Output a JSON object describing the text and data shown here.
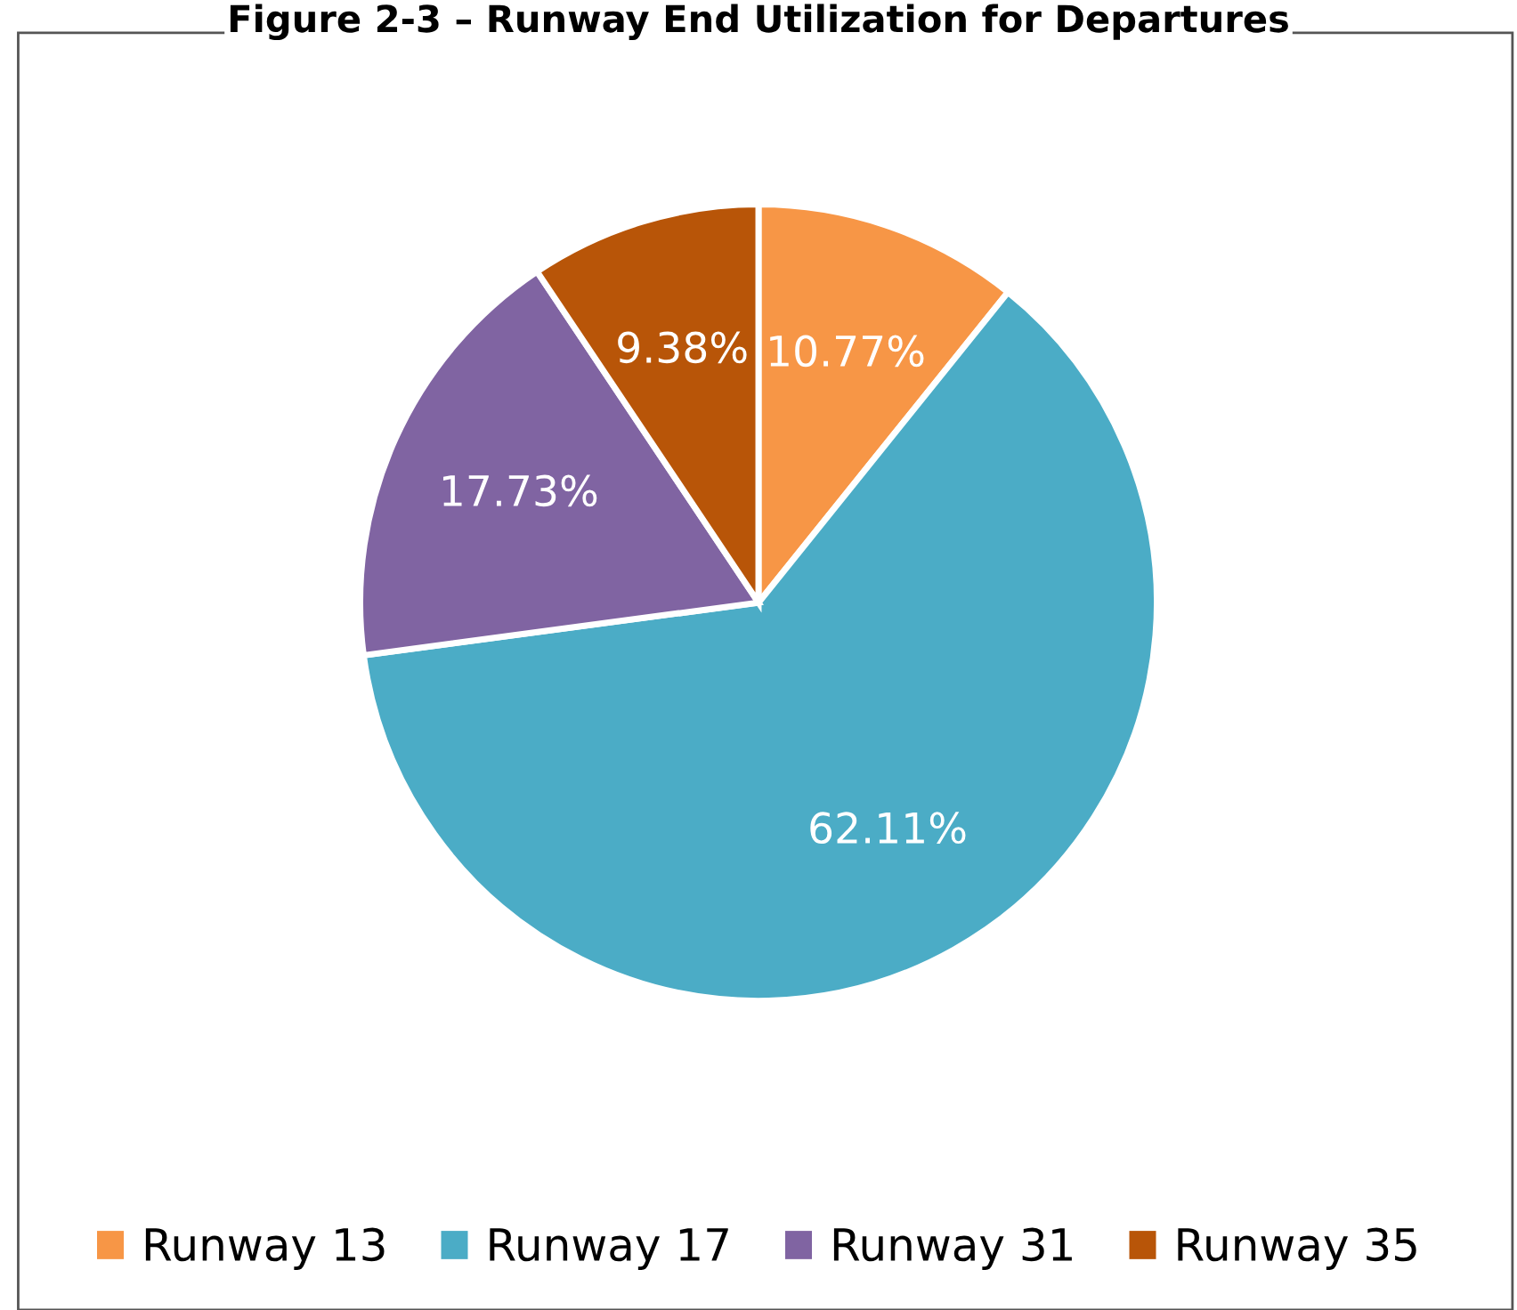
{
  "chart_data": {
    "type": "pie",
    "title": "Figure 2-3 – Runway End Utilization for Departures",
    "categories": [
      "Runway 13",
      "Runway 17",
      "Runway 31",
      "Runway 35"
    ],
    "values": [
      10.77,
      62.11,
      17.73,
      9.38
    ],
    "colors": [
      "#f79646",
      "#4bacc6",
      "#8064a2",
      "#b85508"
    ],
    "value_labels": [
      "10.77%",
      "62.11%",
      "17.73%",
      "9.38%"
    ],
    "legend": "bottom"
  }
}
